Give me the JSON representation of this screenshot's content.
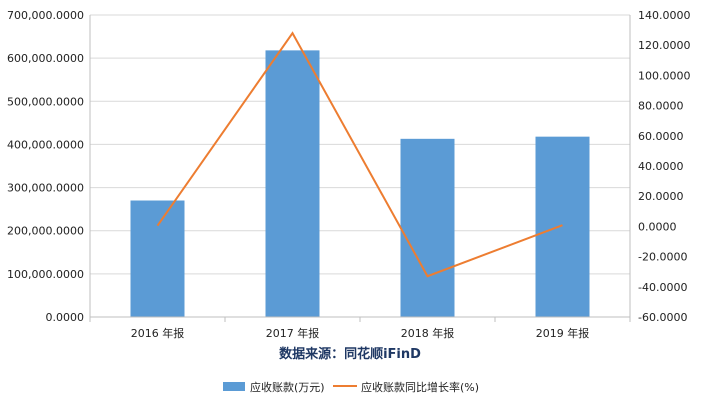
{
  "chart_data": {
    "type": "bar",
    "categories": [
      "2016 年报",
      "2017 年报",
      "2018 年报",
      "2019 年报"
    ],
    "series": [
      {
        "name": "应收账款(万元)",
        "type": "bar",
        "axis": "left",
        "color": "#5b9bd5",
        "values": [
          270000,
          618000,
          413000,
          418000
        ]
      },
      {
        "name": "应收账款同比增长率(%)",
        "type": "line",
        "axis": "right",
        "color": "#ed7d31",
        "values": [
          0.5,
          128,
          -33,
          0.8
        ]
      }
    ],
    "y_left": {
      "lim": [
        0,
        700000
      ],
      "ticks": [
        0,
        100000,
        200000,
        300000,
        400000,
        500000,
        600000,
        700000
      ],
      "tick_labels": [
        "0.0000",
        "100,000.0000",
        "200,000.0000",
        "300,000.0000",
        "400,000.0000",
        "500,000.0000",
        "600,000.0000",
        "700,000.0000"
      ]
    },
    "y_right": {
      "lim": [
        -60,
        140
      ],
      "ticks": [
        -60,
        -40,
        -20,
        0,
        20,
        40,
        60,
        80,
        100,
        120,
        140
      ],
      "tick_labels": [
        "-60.0000",
        "-40.0000",
        "-20.0000",
        "0.0000",
        "20.0000",
        "40.0000",
        "60.0000",
        "80.0000",
        "100.0000",
        "120.0000",
        "140.0000"
      ]
    },
    "source_text": "数据来源：同花顺iFinD",
    "grid": true,
    "legend_position": "bottom"
  }
}
